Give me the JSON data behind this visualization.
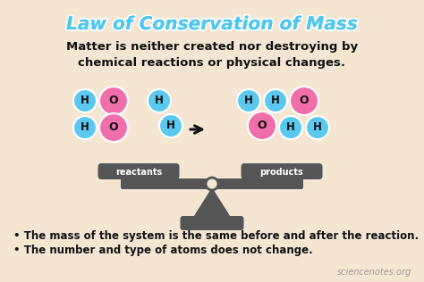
{
  "title": "Law of Conservation of Mass",
  "title_color": "#4ec8f0",
  "title_fontsize": 14.5,
  "subtitle": "Matter is neither created nor destroying by\nchemical reactions or physical changes.",
  "subtitle_fontsize": 9.5,
  "subtitle_color": "#111111",
  "bg_color": "#f5e6d3",
  "bullet1": "The mass of the system is the same before and after the reaction.",
  "bullet2": "The number and type of atoms does not change.",
  "bullet_fontsize": 8.5,
  "bullet_color": "#111111",
  "watermark": "sciencenotes.org",
  "watermark_color": "#999999",
  "h_color": "#5bc8ef",
  "o_color": "#f06faa",
  "scale_color": "#555555",
  "atom_r": 13
}
